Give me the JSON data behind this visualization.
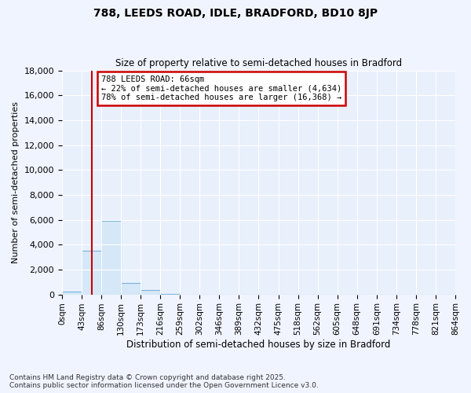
{
  "title1": "788, LEEDS ROAD, IDLE, BRADFORD, BD10 8JP",
  "title2": "Size of property relative to semi-detached houses in Bradford",
  "xlabel": "Distribution of semi-detached houses by size in Bradford",
  "ylabel": "Number of semi-detached properties",
  "bin_labels": [
    "0sqm",
    "43sqm",
    "86sqm",
    "130sqm",
    "173sqm",
    "216sqm",
    "259sqm",
    "302sqm",
    "346sqm",
    "389sqm",
    "432sqm",
    "475sqm",
    "518sqm",
    "562sqm",
    "605sqm",
    "648sqm",
    "691sqm",
    "734sqm",
    "778sqm",
    "821sqm",
    "864sqm"
  ],
  "bar_heights": [
    200,
    3500,
    5900,
    950,
    350,
    50,
    0,
    0,
    0,
    0,
    0,
    0,
    0,
    0,
    0,
    0,
    0,
    0,
    0,
    0
  ],
  "bar_color": "#d6e8f7",
  "bar_edge_color": "#7ab3d9",
  "property_sqm": 66,
  "property_label": "788 LEEDS ROAD: 66sqm",
  "annotation_line1": "← 22% of semi-detached houses are smaller (4,634)",
  "annotation_line2": "78% of semi-detached houses are larger (16,368) →",
  "vline_color": "#cc0000",
  "annotation_box_color": "#cc0000",
  "ylim": [
    0,
    18000
  ],
  "yticks": [
    0,
    2000,
    4000,
    6000,
    8000,
    10000,
    12000,
    14000,
    16000,
    18000
  ],
  "bin_width": 43,
  "footnote1": "Contains HM Land Registry data © Crown copyright and database right 2025.",
  "footnote2": "Contains public sector information licensed under the Open Government Licence v3.0.",
  "background_color": "#f0f4ff",
  "plot_bg_color": "#e8f0fc"
}
